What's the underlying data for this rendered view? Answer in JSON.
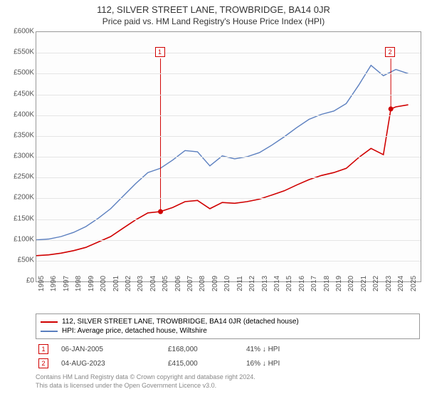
{
  "title": "112, SILVER STREET LANE, TROWBRIDGE, BA14 0JR",
  "subtitle": "Price paid vs. HM Land Registry's House Price Index (HPI)",
  "chart": {
    "type": "line",
    "background_color": "#fdfdfd",
    "grid_color": "#e5e5e5",
    "border_color": "#999999",
    "x": {
      "min": 1995,
      "max": 2026,
      "ticks": [
        1995,
        1996,
        1997,
        1998,
        1999,
        2000,
        2001,
        2002,
        2003,
        2004,
        2005,
        2006,
        2007,
        2008,
        2009,
        2010,
        2011,
        2012,
        2013,
        2014,
        2015,
        2016,
        2017,
        2018,
        2019,
        2020,
        2021,
        2022,
        2023,
        2024,
        2025
      ],
      "tick_fontsize": 10
    },
    "y": {
      "min": 0,
      "max": 600000,
      "step": 50000,
      "tick_labels": [
        "£0",
        "£50K",
        "£100K",
        "£150K",
        "£200K",
        "£250K",
        "£300K",
        "£350K",
        "£400K",
        "£450K",
        "£500K",
        "£550K",
        "£600K"
      ],
      "tick_fontsize": 10
    },
    "series": [
      {
        "name": "property",
        "label": "112, SILVER STREET LANE, TROWBRIDGE, BA14 0JR (detached house)",
        "color": "#d00000",
        "line_width": 1.6,
        "x": [
          1995,
          1996,
          1997,
          1998,
          1999,
          2000,
          2001,
          2002,
          2003,
          2004,
          2005,
          2006,
          2007,
          2008,
          2009,
          2010,
          2011,
          2012,
          2013,
          2014,
          2015,
          2016,
          2017,
          2018,
          2019,
          2020,
          2021,
          2022,
          2023,
          2023.6,
          2024,
          2025
        ],
        "y": [
          62000,
          64000,
          68000,
          74000,
          82000,
          95000,
          108000,
          128000,
          148000,
          165000,
          168000,
          178000,
          192000,
          195000,
          175000,
          190000,
          188000,
          192000,
          198000,
          208000,
          218000,
          232000,
          245000,
          255000,
          262000,
          272000,
          298000,
          320000,
          305000,
          415000,
          420000,
          425000
        ]
      },
      {
        "name": "hpi",
        "label": "HPI: Average price, detached house, Wiltshire",
        "color": "#5b7fbf",
        "line_width": 1.4,
        "x": [
          1995,
          1996,
          1997,
          1998,
          1999,
          2000,
          2001,
          2002,
          2003,
          2004,
          2005,
          2006,
          2007,
          2008,
          2009,
          2010,
          2011,
          2012,
          2013,
          2014,
          2015,
          2016,
          2017,
          2018,
          2019,
          2020,
          2021,
          2022,
          2023,
          2024,
          2025
        ],
        "y": [
          100000,
          102000,
          108000,
          118000,
          132000,
          152000,
          175000,
          205000,
          235000,
          262000,
          272000,
          292000,
          315000,
          312000,
          278000,
          302000,
          295000,
          300000,
          310000,
          328000,
          348000,
          370000,
          390000,
          402000,
          410000,
          428000,
          472000,
          520000,
          495000,
          510000,
          500000
        ]
      }
    ],
    "markers": [
      {
        "n": "1",
        "x": 2005.02,
        "y": 168000,
        "color": "#d00000",
        "dot": true,
        "label_y": 550000
      },
      {
        "n": "2",
        "x": 2023.6,
        "y": 415000,
        "color": "#d00000",
        "dot": true,
        "label_y": 550000
      }
    ]
  },
  "legend": {
    "border_color": "#999999",
    "fontsize": 10
  },
  "sales": [
    {
      "n": "1",
      "color": "#d00000",
      "date": "06-JAN-2005",
      "price": "£168,000",
      "delta": "41% ↓ HPI"
    },
    {
      "n": "2",
      "color": "#d00000",
      "date": "04-AUG-2023",
      "price": "£415,000",
      "delta": "16% ↓ HPI"
    }
  ],
  "footer_line1": "Contains HM Land Registry data © Crown copyright and database right 2024.",
  "footer_line2": "This data is licensed under the Open Government Licence v3.0."
}
